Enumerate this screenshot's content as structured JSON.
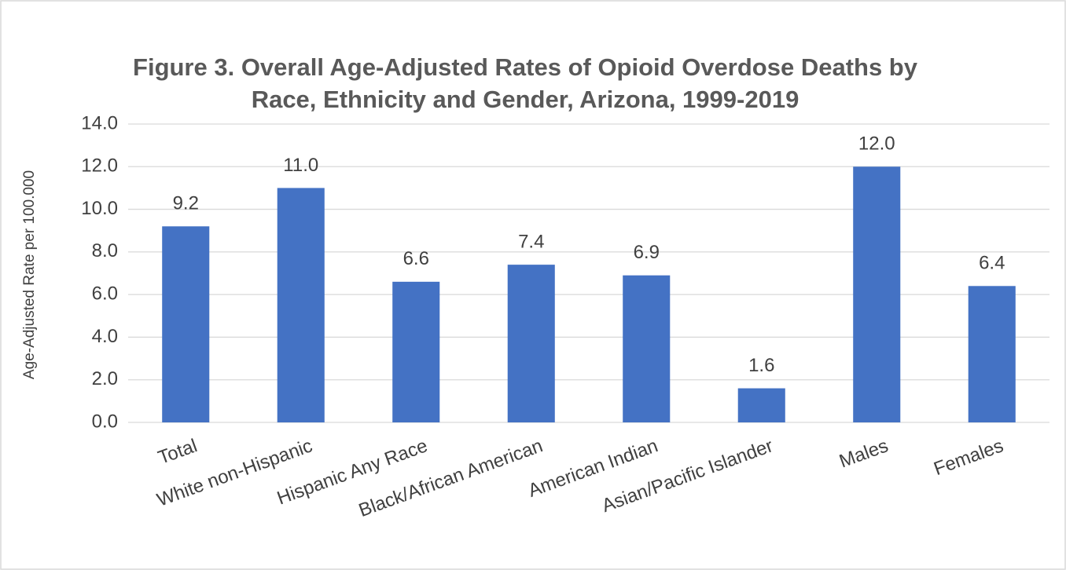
{
  "chart_data": {
    "type": "bar",
    "title": [
      "Figure 3. Overall Age-Adjusted Rates of Opioid Overdose Deaths by",
      "Race, Ethnicity and Gender, Arizona, 1999-2019"
    ],
    "y_label": "Age-Adjusted Rate per 100.000",
    "categories": [
      "Total",
      "White non-Hispanic",
      "Hispanic Any Race",
      "Black/African American",
      "American Indian",
      "Asian/Pacific Islander",
      "Males",
      "Females"
    ],
    "values": [
      9.2,
      11.0,
      6.6,
      7.4,
      6.9,
      1.6,
      12.0,
      6.4
    ],
    "value_labels": [
      "9.2",
      "11.0",
      "6.6",
      "7.4",
      "6.9",
      "1.6",
      "12.0",
      "6.4"
    ],
    "color": "#4472c4",
    "ylim": [
      0,
      14
    ],
    "yticks": [
      {
        "value": 0,
        "label": "0.0"
      },
      {
        "value": 2,
        "label": "2.0"
      },
      {
        "value": 4,
        "label": "4.0"
      },
      {
        "value": 6,
        "label": "6.0"
      },
      {
        "value": 8,
        "label": "8.0"
      },
      {
        "value": 10,
        "label": "10.0"
      },
      {
        "value": 12,
        "label": "12.0"
      },
      {
        "value": 14,
        "label": "14.0"
      }
    ],
    "grid": true
  }
}
